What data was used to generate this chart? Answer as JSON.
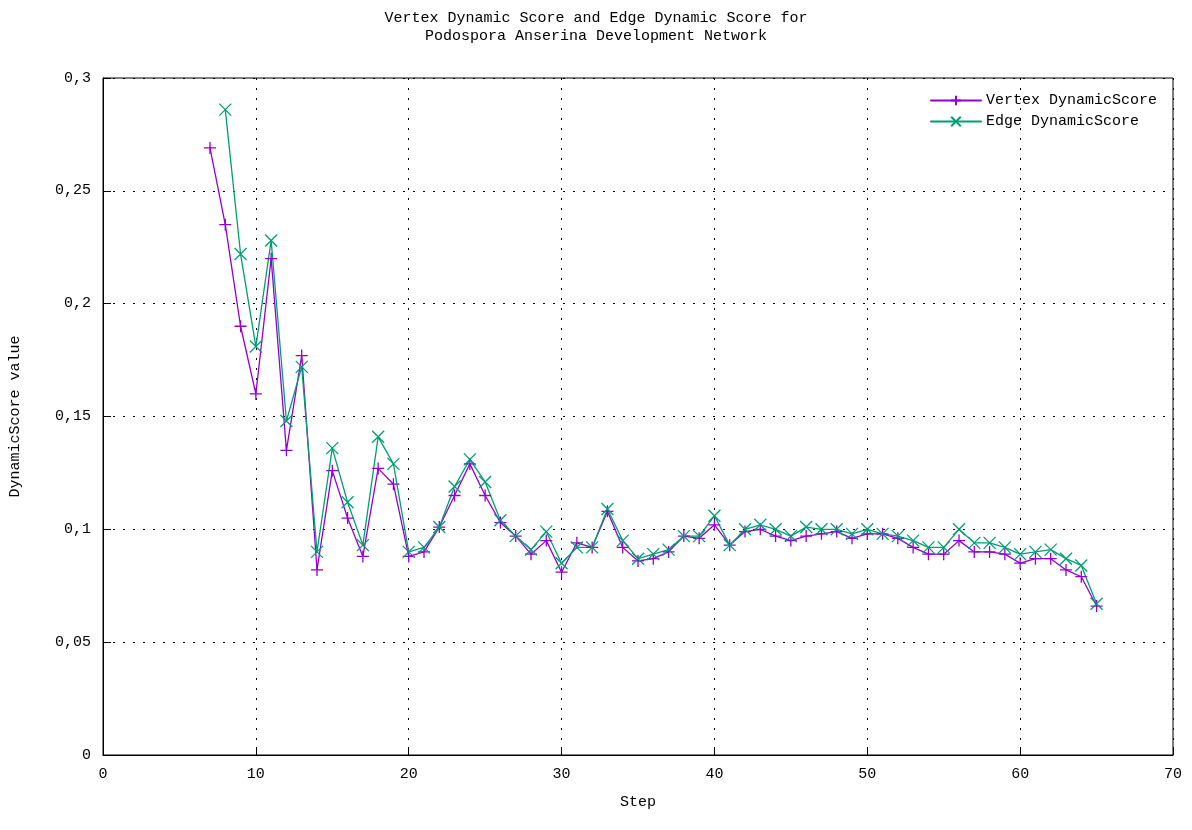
{
  "chart_data": {
    "type": "line",
    "title": "Vertex Dynamic Score and Edge Dynamic Score for\nPodospora Anserina Development Network",
    "xlabel": "Step",
    "ylabel": "DynamicScore value",
    "x": [
      7,
      8,
      9,
      10,
      11,
      12,
      13,
      14,
      15,
      16,
      17,
      18,
      19,
      20,
      21,
      22,
      23,
      24,
      25,
      26,
      27,
      28,
      29,
      30,
      31,
      32,
      33,
      34,
      35,
      36,
      37,
      38,
      39,
      40,
      41,
      42,
      43,
      44,
      45,
      46,
      47,
      48,
      49,
      50,
      51,
      52,
      53,
      54,
      55,
      56,
      57,
      58,
      59,
      60,
      61,
      62,
      63,
      64,
      65
    ],
    "series": [
      {
        "name": "Vertex DynamicScore",
        "color": "#9400d3",
        "marker": "cross",
        "values": [
          0.269,
          0.235,
          0.19,
          0.16,
          0.22,
          0.135,
          0.177,
          0.082,
          0.126,
          0.105,
          0.088,
          0.127,
          0.12,
          0.088,
          0.09,
          0.101,
          0.115,
          0.129,
          0.115,
          0.103,
          0.097,
          0.089,
          0.095,
          0.081,
          0.094,
          0.092,
          0.108,
          0.092,
          0.086,
          0.087,
          0.09,
          0.097,
          0.096,
          0.102,
          0.093,
          0.099,
          0.1,
          0.097,
          0.095,
          0.097,
          0.098,
          0.099,
          0.096,
          0.098,
          0.098,
          0.096,
          0.092,
          0.089,
          0.089,
          0.095,
          0.09,
          0.09,
          0.089,
          0.085,
          0.087,
          0.087,
          0.082,
          0.079,
          0.066
        ]
      },
      {
        "name": "Edge DynamicScore",
        "color": "#009e73",
        "marker": "x",
        "values": [
          null,
          0.286,
          0.222,
          0.181,
          0.228,
          0.148,
          0.172,
          0.09,
          0.136,
          0.112,
          0.093,
          0.141,
          0.129,
          0.09,
          0.092,
          0.101,
          0.119,
          0.131,
          0.121,
          0.104,
          0.097,
          0.091,
          0.099,
          0.085,
          0.092,
          0.092,
          0.109,
          0.095,
          0.087,
          0.089,
          0.091,
          0.097,
          0.097,
          0.106,
          0.093,
          0.1,
          0.102,
          0.1,
          0.097,
          0.101,
          0.1,
          0.1,
          0.098,
          0.1,
          0.098,
          0.097,
          0.095,
          0.092,
          0.092,
          0.1,
          0.094,
          0.094,
          0.092,
          0.089,
          0.09,
          0.091,
          0.087,
          0.084,
          0.067
        ]
      }
    ],
    "xlim": [
      0,
      70
    ],
    "xticks": [
      0,
      10,
      20,
      30,
      40,
      50,
      60,
      70
    ],
    "ylim": [
      0,
      0.3
    ],
    "yticks": [
      0,
      {
        "value": 0.05,
        "label": "0,05"
      },
      {
        "value": 0.1,
        "label": "0,1"
      },
      {
        "value": 0.15,
        "label": "0,15"
      },
      {
        "value": 0.2,
        "label": "0,2"
      },
      {
        "value": 0.25,
        "label": "0,25"
      },
      {
        "value": 0.3,
        "label": "0,3"
      }
    ],
    "grid": true,
    "legend": "top right",
    "line_style": "solid"
  }
}
